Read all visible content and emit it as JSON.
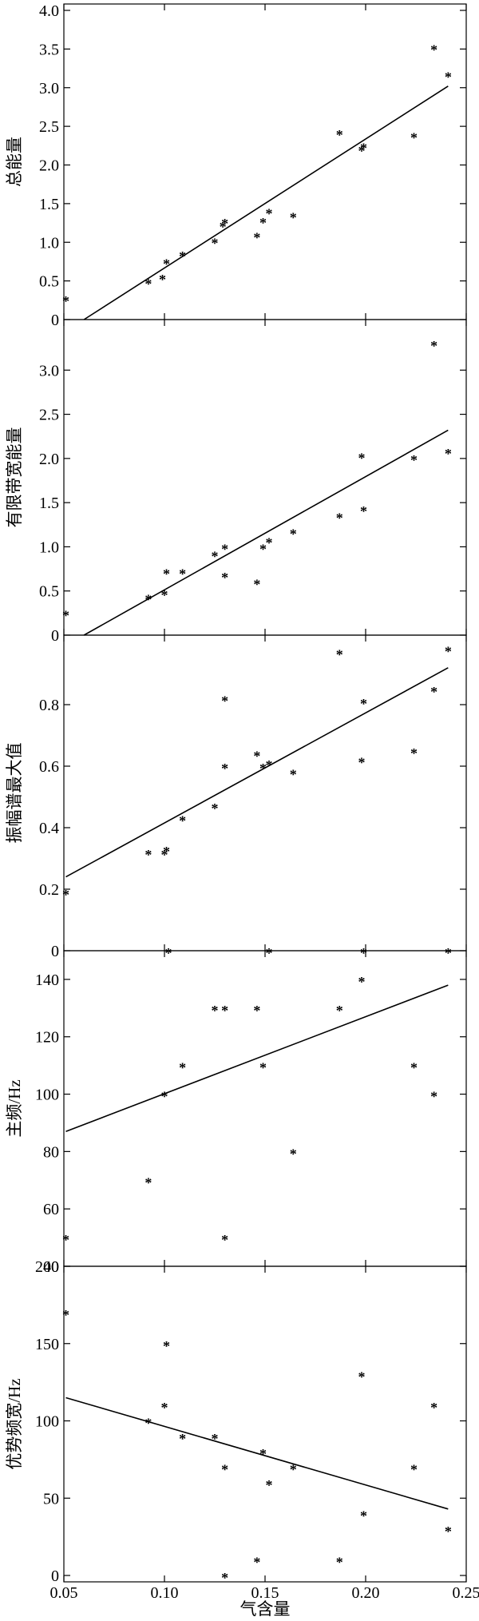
{
  "xlabel": "气含量",
  "xlim": [
    0.05,
    0.25
  ],
  "xticks": [
    0.05,
    0.1,
    0.15,
    0.2,
    0.25
  ],
  "xtick_labels": [
    "0.05",
    "0.10",
    "0.15",
    "0.20",
    "0.25"
  ],
  "chart_data": [
    {
      "type": "scatter",
      "title": "",
      "ylabel": "总能量",
      "ylim": [
        0,
        4.0
      ],
      "yticks": [
        0,
        0.5,
        1.0,
        1.5,
        2.0,
        2.5,
        3.0,
        3.5,
        4.0
      ],
      "ytick_labels": [
        "0",
        "0.5",
        "1.0",
        "1.5",
        "2.0",
        "2.5",
        "3.0",
        "3.5",
        "4.0"
      ],
      "x": [
        0.051,
        0.092,
        0.099,
        0.101,
        0.109,
        0.125,
        0.129,
        0.13,
        0.146,
        0.149,
        0.152,
        0.164,
        0.187,
        0.198,
        0.199,
        0.224,
        0.234,
        0.241
      ],
      "y": [
        0.27,
        0.49,
        0.55,
        0.75,
        0.85,
        1.02,
        1.23,
        1.27,
        1.09,
        1.28,
        1.4,
        1.35,
        2.42,
        2.21,
        2.25,
        2.38,
        3.52,
        3.17
      ],
      "fit": {
        "x": [
          0.06,
          0.241
        ],
        "y": [
          0.0,
          3.02
        ]
      }
    },
    {
      "type": "scatter",
      "title": "",
      "ylabel": "有限带宽能量",
      "ylim": [
        0,
        3.5
      ],
      "yticks": [
        0,
        0.5,
        1.0,
        1.5,
        2.0,
        2.5,
        3.0
      ],
      "ytick_labels": [
        "0",
        "0.5",
        "1.0",
        "1.5",
        "2.0",
        "2.5",
        "3.0"
      ],
      "x": [
        0.051,
        0.092,
        0.1,
        0.101,
        0.109,
        0.125,
        0.13,
        0.13,
        0.146,
        0.149,
        0.152,
        0.164,
        0.187,
        0.198,
        0.199,
        0.224,
        0.234,
        0.241
      ],
      "y": [
        0.25,
        0.43,
        0.48,
        0.72,
        0.72,
        0.92,
        0.68,
        1.0,
        0.6,
        1.0,
        1.07,
        1.17,
        1.35,
        2.03,
        1.43,
        2.01,
        3.3,
        2.08
      ],
      "fit": {
        "x": [
          0.06,
          0.241
        ],
        "y": [
          0.0,
          2.32
        ]
      }
    },
    {
      "type": "scatter",
      "title": "",
      "ylabel": "振幅谱最大值",
      "ylim": [
        0,
        1.0
      ],
      "yticks": [
        0,
        0.2,
        0.4,
        0.6,
        0.8
      ],
      "ytick_labels": [
        "0",
        "0.2",
        "0.4",
        "0.6",
        "0.8"
      ],
      "x": [
        0.051,
        0.092,
        0.1,
        0.101,
        0.102,
        0.109,
        0.125,
        0.13,
        0.13,
        0.146,
        0.149,
        0.152,
        0.164,
        0.187,
        0.198,
        0.199,
        0.224,
        0.234,
        0.241
      ],
      "y": [
        0.19,
        0.32,
        0.32,
        0.33,
        0.0,
        0.43,
        0.47,
        0.82,
        0.6,
        0.64,
        0.6,
        0.61,
        0.58,
        0.97,
        0.62,
        0.81,
        0.65,
        0.85,
        0.98
      ],
      "fit": {
        "x": [
          0.051,
          0.241
        ],
        "y": [
          0.24,
          0.92
        ]
      }
    },
    {
      "type": "scatter",
      "title": "",
      "ylabel": "主频/Hz",
      "ylim": [
        40,
        150
      ],
      "yticks": [
        40,
        60,
        80,
        100,
        120,
        140
      ],
      "ytick_labels": [
        "40",
        "60",
        "80",
        "100",
        "120",
        "140"
      ],
      "x": [
        0.051,
        0.092,
        0.1,
        0.109,
        0.125,
        0.13,
        0.13,
        0.146,
        0.149,
        0.152,
        0.164,
        0.187,
        0.198,
        0.199,
        0.224,
        0.234,
        0.241
      ],
      "y": [
        50,
        70,
        100,
        110,
        130,
        50,
        130,
        130,
        110,
        150,
        80,
        130,
        140,
        150,
        110,
        100,
        150
      ],
      "fit": {
        "x": [
          0.051,
          0.241
        ],
        "y": [
          87,
          138
        ]
      }
    },
    {
      "type": "scatter",
      "title": "",
      "ylabel": "优势频宽/Hz",
      "ylim": [
        0,
        200
      ],
      "yticks": [
        0,
        50,
        100,
        150,
        200
      ],
      "ytick_labels": [
        "0",
        "50",
        "100",
        "150",
        "200"
      ],
      "x": [
        0.051,
        0.092,
        0.1,
        0.101,
        0.109,
        0.125,
        0.13,
        0.13,
        0.146,
        0.149,
        0.152,
        0.164,
        0.187,
        0.198,
        0.199,
        0.224,
        0.234,
        0.241
      ],
      "y": [
        170,
        100,
        110,
        150,
        90,
        90,
        70,
        0,
        10,
        80,
        60,
        70,
        10,
        130,
        40,
        70,
        110,
        30
      ],
      "fit": {
        "x": [
          0.051,
          0.241
        ],
        "y": [
          115,
          43
        ]
      }
    }
  ]
}
